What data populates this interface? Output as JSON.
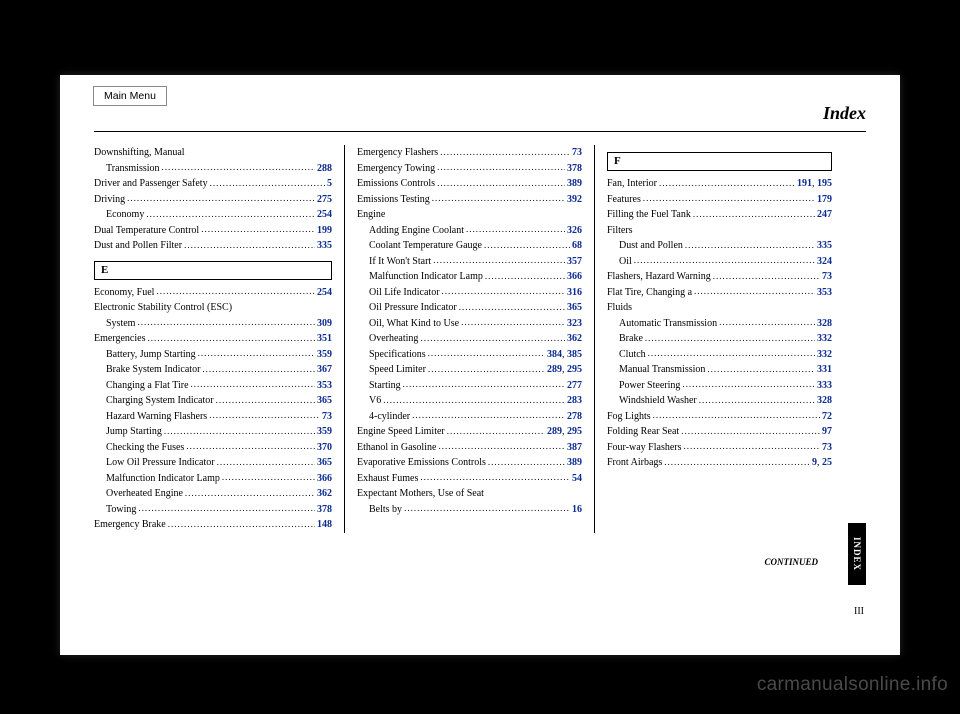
{
  "mainMenu": "Main Menu",
  "title": "Index",
  "continued": "CONTINUED",
  "pageNumber": "III",
  "indexTab": "INDEX",
  "watermark": "carmanualsonline.info",
  "columns": [
    [
      {
        "label": "Downshifting, Manual",
        "type": "noPage"
      },
      {
        "label": "Transmission",
        "pages": [
          "288"
        ],
        "indent": true
      },
      {
        "label": "Driver and Passenger Safety",
        "pages": [
          "5"
        ]
      },
      {
        "label": "Driving",
        "pages": [
          "275"
        ]
      },
      {
        "label": "Economy",
        "pages": [
          "254"
        ],
        "indent": true
      },
      {
        "label": "Dual Temperature Control",
        "pages": [
          "199"
        ]
      },
      {
        "label": "Dust and Pollen Filter",
        "pages": [
          "335"
        ]
      },
      {
        "type": "letter",
        "label": "E"
      },
      {
        "label": "Economy, Fuel",
        "pages": [
          "254"
        ]
      },
      {
        "label": "Electronic Stability Control (ESC)",
        "type": "noPage"
      },
      {
        "label": "System",
        "pages": [
          "309"
        ],
        "indent": true
      },
      {
        "label": "Emergencies",
        "pages": [
          "351"
        ]
      },
      {
        "label": "Battery, Jump Starting",
        "pages": [
          "359"
        ],
        "indent": true
      },
      {
        "label": "Brake System Indicator",
        "pages": [
          "367"
        ],
        "indent": true
      },
      {
        "label": "Changing a Flat Tire",
        "pages": [
          "353"
        ],
        "indent": true
      },
      {
        "label": "Charging System Indicator",
        "pages": [
          "365"
        ],
        "indent": true
      },
      {
        "label": "Hazard Warning Flashers",
        "pages": [
          "73"
        ],
        "indent": true
      },
      {
        "label": "Jump Starting",
        "pages": [
          "359"
        ],
        "indent": true
      },
      {
        "label": "Checking the Fuses",
        "pages": [
          "370"
        ],
        "indent": true
      },
      {
        "label": "Low Oil Pressure Indicator",
        "pages": [
          "365"
        ],
        "indent": true
      },
      {
        "label": "Malfunction Indicator Lamp",
        "pages": [
          "366"
        ],
        "indent": true
      },
      {
        "label": "Overheated Engine",
        "pages": [
          "362"
        ],
        "indent": true
      },
      {
        "label": "Towing",
        "pages": [
          "378"
        ],
        "indent": true
      },
      {
        "label": "Emergency Brake",
        "pages": [
          "148"
        ]
      }
    ],
    [
      {
        "label": "Emergency Flashers",
        "pages": [
          "73"
        ]
      },
      {
        "label": "Emergency Towing",
        "pages": [
          "378"
        ]
      },
      {
        "label": "Emissions Controls",
        "pages": [
          "389"
        ]
      },
      {
        "label": "Emissions Testing",
        "pages": [
          "392"
        ]
      },
      {
        "label": "Engine",
        "type": "noPage"
      },
      {
        "label": "Adding Engine Coolant",
        "pages": [
          "326"
        ],
        "indent": true
      },
      {
        "label": "Coolant Temperature Gauge",
        "pages": [
          "68"
        ],
        "indent": true
      },
      {
        "label": "If It Won't Start",
        "pages": [
          "357"
        ],
        "indent": true
      },
      {
        "label": "Malfunction Indicator Lamp",
        "pages": [
          "366"
        ],
        "indent": true
      },
      {
        "label": "Oil Life Indicator",
        "pages": [
          "316"
        ],
        "indent": true
      },
      {
        "label": "Oil Pressure Indicator",
        "pages": [
          "365"
        ],
        "indent": true
      },
      {
        "label": "Oil, What Kind to Use",
        "pages": [
          "323"
        ],
        "indent": true
      },
      {
        "label": "Overheating",
        "pages": [
          "362"
        ],
        "indent": true
      },
      {
        "label": "Specifications",
        "pages": [
          "384",
          "385"
        ],
        "indent": true
      },
      {
        "label": "Speed Limiter",
        "pages": [
          "289",
          "295"
        ],
        "indent": true
      },
      {
        "label": "Starting",
        "pages": [
          "277"
        ],
        "indent": true
      },
      {
        "label": "V6",
        "pages": [
          "283"
        ],
        "indent": true
      },
      {
        "label": "4-cylinder",
        "pages": [
          "278"
        ],
        "indent": true
      },
      {
        "label": "Engine Speed Limiter",
        "pages": [
          "289",
          "295"
        ]
      },
      {
        "label": "Ethanol in Gasoline",
        "pages": [
          "387"
        ]
      },
      {
        "label": "Evaporative Emissions Controls",
        "pages": [
          "389"
        ]
      },
      {
        "label": "Exhaust Fumes",
        "pages": [
          "54"
        ]
      },
      {
        "label": "Expectant Mothers, Use of Seat",
        "type": "noPage"
      },
      {
        "label": "Belts by",
        "pages": [
          "16"
        ],
        "indent": true
      }
    ],
    [
      {
        "type": "letter",
        "label": "F"
      },
      {
        "label": "Fan, Interior",
        "pages": [
          "191",
          "195"
        ]
      },
      {
        "label": "Features",
        "pages": [
          "179"
        ]
      },
      {
        "label": "Filling the Fuel Tank",
        "pages": [
          "247"
        ]
      },
      {
        "label": "Filters",
        "type": "noPage"
      },
      {
        "label": "Dust and Pollen",
        "pages": [
          "335"
        ],
        "indent": true
      },
      {
        "label": "Oil",
        "pages": [
          "324"
        ],
        "indent": true
      },
      {
        "label": "Flashers, Hazard Warning",
        "pages": [
          "73"
        ]
      },
      {
        "label": "Flat Tire, Changing a",
        "pages": [
          "353"
        ]
      },
      {
        "label": "Fluids",
        "type": "noPage"
      },
      {
        "label": "Automatic Transmission",
        "pages": [
          "328"
        ],
        "indent": true
      },
      {
        "label": "Brake",
        "pages": [
          "332"
        ],
        "indent": true
      },
      {
        "label": "Clutch",
        "pages": [
          "332"
        ],
        "indent": true
      },
      {
        "label": "Manual Transmission",
        "pages": [
          "331"
        ],
        "indent": true
      },
      {
        "label": "Power Steering",
        "pages": [
          "333"
        ],
        "indent": true
      },
      {
        "label": "Windshield Washer",
        "pages": [
          "328"
        ],
        "indent": true
      },
      {
        "label": "Fog Lights",
        "pages": [
          "72"
        ]
      },
      {
        "label": "Folding Rear Seat",
        "pages": [
          "97"
        ]
      },
      {
        "label": "Four-way Flashers",
        "pages": [
          "73"
        ]
      },
      {
        "label": "Front Airbags",
        "pages": [
          "9",
          "25"
        ]
      }
    ]
  ]
}
